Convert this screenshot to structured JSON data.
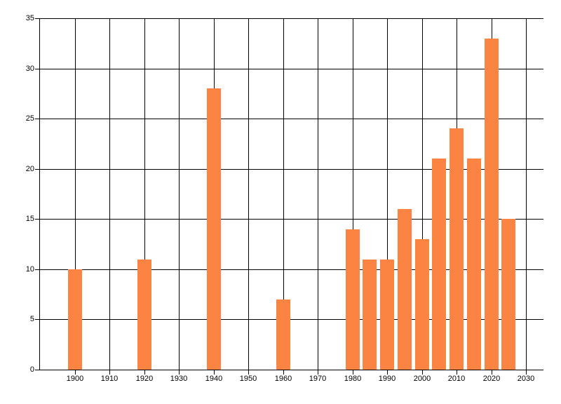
{
  "chart_data": {
    "type": "bar",
    "title": "",
    "xlabel": "",
    "ylabel": "",
    "x": [
      1900,
      1920,
      1940,
      1960,
      1980,
      1985,
      1990,
      1995,
      2000,
      2005,
      2010,
      2015,
      2020,
      2025
    ],
    "values": [
      10,
      11,
      28,
      7,
      14,
      11,
      11,
      16,
      13,
      21,
      24,
      21,
      33,
      15
    ],
    "xlim": [
      1890,
      2035
    ],
    "ylim": [
      0,
      35
    ],
    "x_ticks": [
      1900,
      1910,
      1920,
      1930,
      1940,
      1950,
      1960,
      1970,
      1980,
      1990,
      2000,
      2010,
      2020,
      2030
    ],
    "y_ticks": [
      0,
      5,
      10,
      15,
      20,
      25,
      30,
      35
    ],
    "grid": true,
    "legend": "none",
    "colors": {
      "bar": "#fb8442",
      "grid": "#000000",
      "axis": "#000000",
      "text": "#000000",
      "background": "#ffffff"
    }
  }
}
